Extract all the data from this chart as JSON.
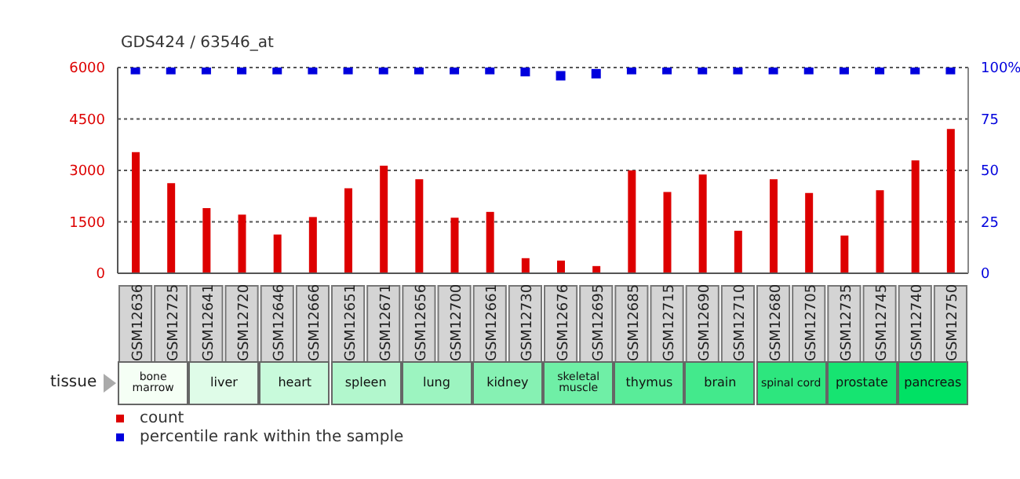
{
  "chart_data": {
    "type": "bar",
    "title": "GDS424 / 63546_at",
    "categories": [
      "GSM12636",
      "GSM12725",
      "GSM12641",
      "GSM12720",
      "GSM12646",
      "GSM12666",
      "GSM12651",
      "GSM12671",
      "GSM12656",
      "GSM12700",
      "GSM12661",
      "GSM12730",
      "GSM12676",
      "GSM12695",
      "GSM12685",
      "GSM12715",
      "GSM12690",
      "GSM12710",
      "GSM12680",
      "GSM12705",
      "GSM12735",
      "GSM12745",
      "GSM12740",
      "GSM12750"
    ],
    "series": [
      {
        "name": "count",
        "color": "#dd0000",
        "values": [
          3530,
          2630,
          1900,
          1710,
          1130,
          1640,
          2480,
          3140,
          2740,
          1620,
          1790,
          440,
          370,
          210,
          3000,
          2370,
          2880,
          1240,
          2740,
          2340,
          1100,
          2420,
          3290,
          4210
        ]
      },
      {
        "name": "percentile rank within the sample",
        "type": "scatter",
        "axis": "y2",
        "marker": "square",
        "color": "#0000dd",
        "values": [
          99,
          99,
          99,
          99,
          99,
          99,
          99,
          99,
          99,
          99,
          99,
          98,
          96,
          97,
          99,
          99,
          99,
          99,
          99,
          99,
          99,
          99,
          99,
          99
        ]
      }
    ],
    "ylim": [
      0,
      6000
    ],
    "yticks": [
      0,
      1500,
      3000,
      4500,
      6000
    ],
    "y2lim": [
      0,
      100
    ],
    "y2ticks": [
      0,
      25,
      50,
      75,
      {
        "value": 100,
        "label": "100%"
      }
    ],
    "grid": "y",
    "legend": "bottom",
    "annotations": [
      "tissue",
      "bone marrow",
      "liver",
      "heart",
      "spleen",
      "lung",
      "kidney",
      "skeletal muscle",
      "thymus",
      "brain",
      "spinal cord",
      "prostate",
      "pancreas"
    ]
  }
}
